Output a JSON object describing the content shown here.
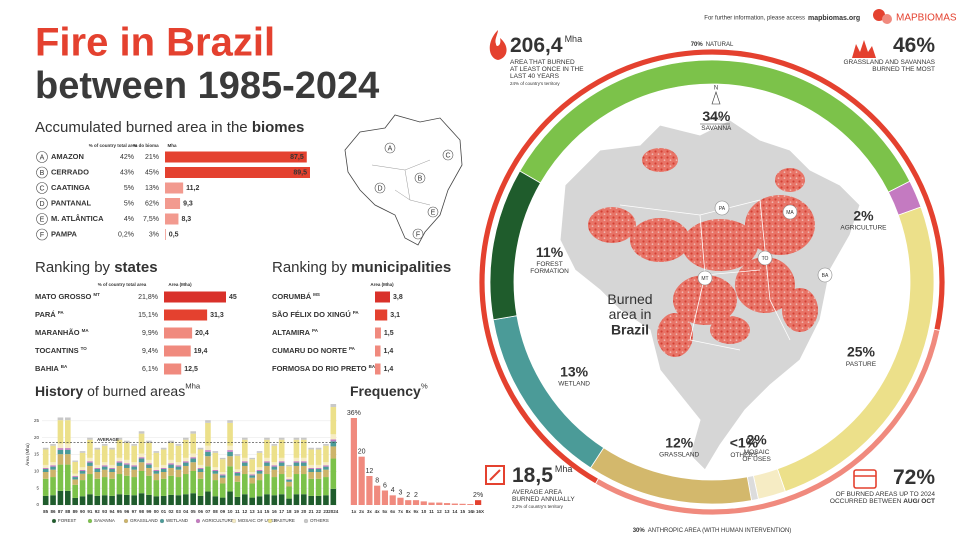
{
  "header": {
    "title": "Fire in Brazil",
    "subtitle": "between 1985-2024",
    "info": "For further information, please access",
    "link": "mapbiomas.org",
    "logo": "MAPBIOMAS"
  },
  "stats": [
    {
      "value": "206,4",
      "unit": "Mha",
      "lines": [
        "AREA THAT BURNED",
        "AT LEAST ONCE IN THE",
        "LAST 40 YEARS"
      ],
      "note": "24% of country's territory"
    },
    {
      "value": "46%",
      "lines": [
        "GRASSLAND AND SAVANNAS",
        "BURNED THE MOST"
      ]
    },
    {
      "value": "18,5",
      "unit": "Mha",
      "lines": [
        "AVERAGE AREA",
        "BURNED ANNUALLY"
      ],
      "note": "2,2% of country's territory"
    },
    {
      "value": "72%",
      "lines": [
        "OF BURNED AREAS UP TO 2024",
        "OCCURRED BETWEEN "
      ],
      "bold": "AUG/ OCT"
    }
  ],
  "map": {
    "labels": [
      "PA",
      "MA",
      "TO",
      "MT",
      "BA"
    ],
    "north": "N",
    "scale": "500 km"
  },
  "chart_data": [
    {
      "type": "bar",
      "orientation": "horizontal",
      "title_parts": [
        {
          "text": "Accumulated burned area in the ",
          "bold": false
        },
        {
          "text": "biomes",
          "bold": true
        }
      ],
      "columns": [
        "% of country total area",
        "% do bioma",
        "Mha"
      ],
      "letters": [
        "A",
        "B",
        "C",
        "D",
        "E",
        "F"
      ],
      "categories": [
        "AMAZON",
        "CERRADO",
        "CAATINGA",
        "PANTANAL",
        "M. ATLÂNTICA",
        "PAMPA"
      ],
      "country_share": [
        "42%",
        "43%",
        "5%",
        "5%",
        "4%",
        "0,2%"
      ],
      "biome_share": [
        "21%",
        "45%",
        "13%",
        "62%",
        "7,5%",
        "3%"
      ],
      "values": [
        87.5,
        89.5,
        11.2,
        9.3,
        8.3,
        0.5
      ],
      "value_labels": [
        "87,5",
        "89,5",
        "11,2",
        "9,3",
        "8,3",
        "0,5"
      ],
      "colors": [
        "#e4412f",
        "#e4412f",
        "#f29a8f",
        "#f29a8f",
        "#f29a8f",
        "#f29a8f"
      ]
    },
    {
      "type": "bar",
      "orientation": "horizontal",
      "title_parts": [
        {
          "text": "Ranking by ",
          "bold": false
        },
        {
          "text": "states",
          "bold": true
        }
      ],
      "columns": [
        "% of country total area",
        "Area (Mha)"
      ],
      "categories": [
        "MATO GROSSO",
        "PARÁ",
        "MARANHÃO",
        "TOCANTINS",
        "BAHIA"
      ],
      "abbreviations": [
        "MT",
        "PA",
        "MA",
        "TO",
        "BA"
      ],
      "country_share": [
        "21,8%",
        "15,1%",
        "9,9%",
        "9,4%",
        "6,1%"
      ],
      "values": [
        45,
        31.3,
        20.4,
        19.4,
        12.5
      ],
      "value_labels": [
        "45",
        "31,3",
        "20,4",
        "19,4",
        "12,5"
      ],
      "colors": [
        "#d9312a",
        "#e4412f",
        "#f08a7e",
        "#f08a7e",
        "#f08a7e"
      ]
    },
    {
      "type": "bar",
      "orientation": "horizontal",
      "title_parts": [
        {
          "text": "Ranking by ",
          "bold": false
        },
        {
          "text": "municipalities",
          "bold": true
        }
      ],
      "columns": [
        "Area (Mha)"
      ],
      "categories": [
        "CORUMBÁ",
        "SÃO FÉLIX DO XINGÚ",
        "ALTAMIRA",
        "CUMARU DO NORTE",
        "FORMOSA DO RIO PRETO"
      ],
      "abbreviations": [
        "MS",
        "PA",
        "PA",
        "PA",
        "BA"
      ],
      "values": [
        3.8,
        3.1,
        1.5,
        1.4,
        1.4
      ],
      "value_labels": [
        "3,8",
        "3,1",
        "1,5",
        "1,4",
        "1,4"
      ],
      "colors": [
        "#d9312a",
        "#e4412f",
        "#f08a7e",
        "#f08a7e",
        "#f08a7e"
      ]
    },
    {
      "type": "stacked_bar",
      "title_parts": [
        {
          "text": "History",
          "bold": true
        },
        {
          "text": " of burned areas",
          "bold": false
        },
        {
          "text": "Mha",
          "bold": false,
          "sup": true
        }
      ],
      "ylabel": "Área (Mha)",
      "categories": [
        "85",
        "86",
        "87",
        "88",
        "89",
        "90",
        "91",
        "92",
        "93",
        "94",
        "95",
        "96",
        "97",
        "98",
        "99",
        "00",
        "01",
        "02",
        "03",
        "04",
        "05",
        "06",
        "07",
        "08",
        "09",
        "10",
        "11",
        "12",
        "13",
        "14",
        "15",
        "16",
        "17",
        "18",
        "19",
        "20",
        "21",
        "22",
        "23",
        "2024"
      ],
      "series": [
        {
          "name": "FOREST",
          "color": "#1f5c2c",
          "values": [
            2.7,
            2.9,
            4.2,
            4.2,
            2.1,
            2.6,
            3.2,
            2.7,
            2.9,
            2.7,
            3.2,
            3.0,
            2.9,
            3.5,
            3.0,
            2.6,
            2.7,
            3.0,
            2.9,
            3.2,
            3.5,
            2.7,
            4.0,
            2.6,
            2.2,
            4.0,
            2.4,
            3.2,
            2.2,
            2.6,
            3.2,
            2.9,
            3.2,
            1.9,
            3.2,
            3.2,
            2.7,
            2.7,
            2.9,
            4.8
          ]
        },
        {
          "name": "SAVANNA",
          "color": "#7cc24a",
          "values": [
            5.1,
            5.4,
            7.8,
            7.8,
            3.9,
            4.8,
            6.0,
            5.1,
            5.4,
            5.1,
            6.0,
            5.7,
            5.4,
            6.6,
            5.7,
            4.8,
            5.1,
            5.7,
            5.4,
            6.0,
            6.6,
            5.1,
            7.5,
            4.8,
            4.2,
            7.5,
            4.5,
            6.0,
            4.2,
            4.8,
            6.0,
            5.4,
            6.0,
            3.6,
            6.0,
            6.0,
            5.1,
            5.1,
            5.4,
            9.0
          ]
        },
        {
          "name": "GRASSLAND",
          "color": "#cdb46a",
          "values": [
            2.0,
            2.2,
            3.1,
            3.1,
            1.6,
            1.9,
            2.4,
            2.0,
            2.2,
            2.0,
            2.4,
            2.3,
            2.2,
            2.6,
            2.3,
            1.9,
            2.0,
            2.3,
            2.2,
            2.4,
            2.6,
            2.0,
            3.0,
            1.9,
            1.7,
            3.0,
            1.8,
            2.4,
            1.7,
            1.9,
            2.4,
            2.2,
            2.4,
            1.4,
            2.4,
            2.4,
            2.0,
            2.0,
            2.2,
            3.6
          ]
        },
        {
          "name": "WETLAND",
          "color": "#4b9b98",
          "values": [
            0.9,
            0.9,
            1.3,
            1.3,
            0.7,
            0.8,
            1.0,
            0.9,
            0.9,
            0.9,
            1.0,
            1.0,
            0.9,
            1.1,
            1.0,
            0.8,
            0.9,
            1.0,
            0.9,
            1.0,
            1.1,
            0.9,
            1.3,
            0.8,
            0.7,
            1.3,
            0.8,
            1.0,
            0.7,
            0.8,
            1.0,
            0.9,
            1.0,
            0.6,
            1.0,
            1.0,
            0.9,
            0.9,
            0.9,
            1.5
          ]
        },
        {
          "name": "AGRICULTURE",
          "color": "#c47ac1",
          "values": [
            0.3,
            0.4,
            0.5,
            0.5,
            0.3,
            0.3,
            0.4,
            0.3,
            0.4,
            0.3,
            0.4,
            0.4,
            0.4,
            0.4,
            0.4,
            0.3,
            0.3,
            0.4,
            0.4,
            0.4,
            0.4,
            0.3,
            0.5,
            0.3,
            0.3,
            0.5,
            0.3,
            0.4,
            0.3,
            0.3,
            0.4,
            0.4,
            0.4,
            0.2,
            0.4,
            0.4,
            0.3,
            0.3,
            0.4,
            0.6
          ]
        },
        {
          "name": "MOSAIC OF USES",
          "color": "#f6ecc4",
          "values": [
            0.9,
            0.9,
            1.3,
            1.3,
            0.7,
            0.8,
            1.0,
            0.9,
            0.9,
            0.9,
            1.0,
            1.0,
            0.9,
            1.1,
            1.0,
            0.8,
            0.9,
            1.0,
            0.9,
            1.0,
            1.1,
            0.9,
            1.3,
            0.8,
            0.7,
            1.3,
            0.8,
            1.0,
            0.7,
            0.8,
            1.0,
            0.9,
            1.0,
            0.6,
            1.0,
            1.0,
            0.9,
            0.9,
            0.9,
            1.5
          ]
        },
        {
          "name": "PASTURE",
          "color": "#ece08a",
          "values": [
            4.6,
            4.9,
            7.0,
            7.0,
            3.5,
            4.3,
            5.4,
            4.6,
            4.9,
            4.6,
            5.4,
            5.1,
            4.9,
            5.9,
            5.1,
            4.3,
            4.6,
            5.1,
            4.9,
            5.4,
            5.9,
            4.6,
            6.8,
            4.3,
            3.8,
            6.8,
            4.0,
            5.4,
            3.8,
            4.3,
            5.4,
            4.9,
            5.4,
            3.2,
            5.4,
            5.4,
            4.6,
            4.6,
            4.9,
            8.1
          ]
        },
        {
          "name": "OTHERS",
          "color": "#c8c8c8",
          "values": [
            0.5,
            0.5,
            0.8,
            0.8,
            0.4,
            0.5,
            0.6,
            0.5,
            0.5,
            0.5,
            0.6,
            0.6,
            0.5,
            0.7,
            0.6,
            0.5,
            0.5,
            0.6,
            0.5,
            0.6,
            0.7,
            0.5,
            0.8,
            0.5,
            0.4,
            0.8,
            0.5,
            0.6,
            0.4,
            0.5,
            0.6,
            0.5,
            0.6,
            0.4,
            0.6,
            0.6,
            0.5,
            0.5,
            0.5,
            0.9
          ]
        }
      ],
      "average": {
        "label": "AVERAGE",
        "value": 18.5
      },
      "ylim": [
        0,
        30
      ],
      "yticks": [
        0,
        5,
        10,
        15,
        20,
        25
      ],
      "grid": true
    },
    {
      "type": "bar",
      "orientation": "vertical",
      "title_parts": [
        {
          "text": "Frequency",
          "bold": true
        },
        {
          "text": "%",
          "bold": false,
          "sup": true
        }
      ],
      "categories": [
        "1x",
        "2x",
        "3x",
        "4x",
        "5x",
        "6x",
        "7x",
        "8x",
        "9x",
        "10",
        "11",
        "12",
        "13",
        "14",
        "15",
        "16",
        "≥ 16X"
      ],
      "values": [
        36,
        20,
        12,
        8,
        6,
        4,
        3,
        2,
        2,
        1.5,
        1,
        1,
        0.8,
        0.6,
        0.5,
        0.4,
        2
      ],
      "value_labels": [
        "36%",
        "20",
        "12",
        "8",
        "6",
        "4",
        "3",
        "2",
        "2",
        null,
        null,
        null,
        null,
        null,
        null,
        null,
        "2%"
      ],
      "color": "#f08a7e"
    },
    {
      "type": "pie",
      "center_title": "Burned area in",
      "center_title_bold": "Brazil",
      "categories": [
        "SAVANNA",
        "AGRICULTURE",
        "PASTURE",
        "MOSAIC OF USES",
        "OTHERS",
        "GRASSLAND",
        "WETLAND",
        "FOREST FORMATION"
      ],
      "values": [
        34,
        2,
        25,
        2,
        0.5,
        12,
        13,
        11
      ],
      "value_labels": [
        "34%",
        "2%",
        "25%",
        "2%",
        "<1%",
        "12%",
        "13%",
        "11%"
      ],
      "colors": [
        "#7cc24a",
        "#c47ac1",
        "#ece08a",
        "#f6ecc4",
        "#dcdcdc",
        "#d3b86c",
        "#4b9b98",
        "#1f5c2c"
      ]
    },
    {
      "type": "pie",
      "categories": [
        "NATURAL",
        "ANTHROPIC AREA (WITH HUMAN INTERVENTION)"
      ],
      "values": [
        70,
        30
      ],
      "value_labels": [
        "70%",
        "30%"
      ],
      "colors": [
        "#e4412f",
        "#f08a7e"
      ]
    }
  ]
}
